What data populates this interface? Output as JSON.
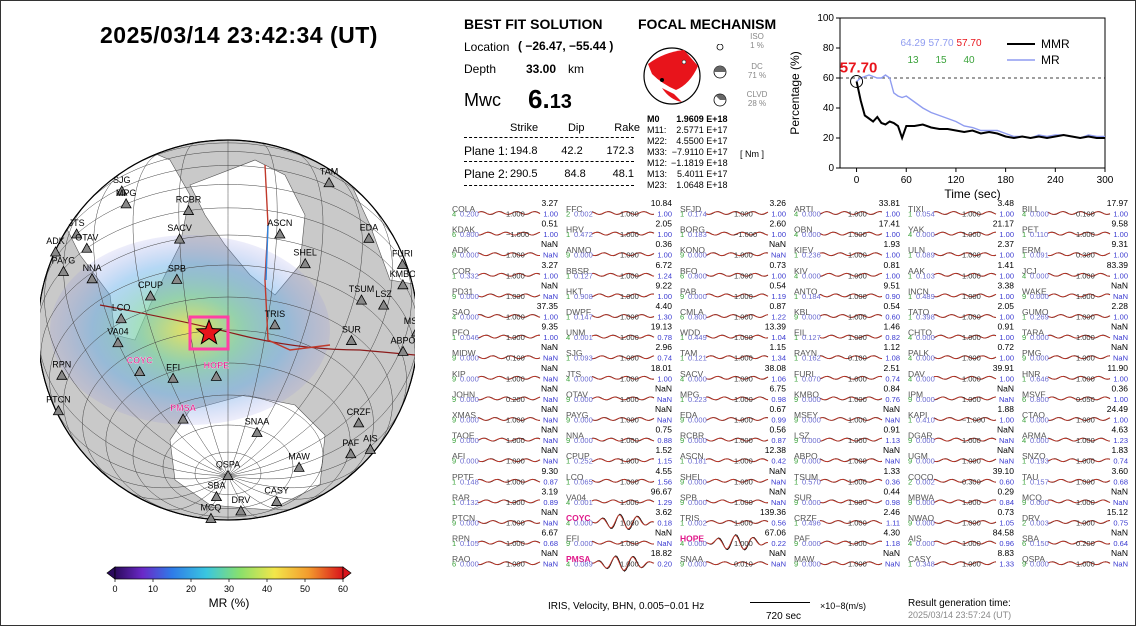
{
  "datetime": "2025/03/14  23:42:34 (UT)",
  "best_fit": {
    "title": "BEST FIT SOLUTION",
    "location_label": "Location",
    "location_value": "( −26.47,  −55.44 )",
    "depth_label": "Depth",
    "depth_value": "33.00",
    "depth_unit": "km",
    "mwc_label": "Mwc",
    "mwc_int": "6.",
    "mwc_dec": "13",
    "headers": [
      "Strike",
      "Dip",
      "Rake"
    ],
    "plane1_label": "Plane 1:",
    "plane1": [
      "194.8",
      "42.2",
      "172.3"
    ],
    "plane2_label": "Plane 2:",
    "plane2": [
      "290.5",
      "84.8",
      "48.1"
    ]
  },
  "focal": {
    "title": "FOCAL MECHANISM",
    "iso_label": "ISO",
    "iso_value": "1 %",
    "dc_label": "DC",
    "dc_value": "71 %",
    "clvd_label": "CLVD",
    "clvd_value": "28 %",
    "tensor_names": [
      "M0",
      "M11:",
      "M22:",
      "M33:",
      "M12:",
      "M13:",
      "M23:"
    ],
    "tensor_values": [
      "1.9609 E+18",
      "2.5771 E+17",
      "4.5500 E+17",
      "−7.9110 E+17",
      "−1.1819 E+18",
      "5.4011 E+17",
      "1.0648 E+18"
    ],
    "unit": "[ Nm ]"
  },
  "mr_chart": {
    "ylabel": "Percentage (%)",
    "xlabel": "Time (sec)",
    "xticks": [
      "0",
      "60",
      "120",
      "180",
      "240",
      "300"
    ],
    "yticks": [
      "0",
      "20",
      "40",
      "60",
      "80",
      "100"
    ],
    "legend": [
      "MMR",
      "MR"
    ],
    "peak_label": "57.70",
    "stats_top": [
      "64.29",
      "57.70",
      "57.70"
    ],
    "stats_bottom": [
      "13",
      "15",
      "40"
    ],
    "colors": {
      "mmr": "#000000",
      "mr": "#8f9cf0",
      "peak": "#e8141b",
      "green": "#3aa23a"
    }
  },
  "chart_data": {
    "type": "line",
    "x": [
      0,
      5,
      10,
      15,
      20,
      25,
      30,
      35,
      40,
      45,
      50,
      55,
      60,
      70,
      80,
      90,
      100,
      110,
      120,
      130,
      140,
      150,
      160,
      170,
      180,
      190,
      200,
      210,
      220,
      230,
      240,
      250,
      260,
      270,
      280,
      290,
      300
    ],
    "series": [
      {
        "name": "MMR",
        "values": [
          57.7,
          45,
          35,
          33,
          31,
          34,
          30,
          29,
          31,
          30,
          28,
          20,
          28,
          28,
          29,
          27,
          26,
          26,
          25,
          24,
          25,
          23,
          24,
          23,
          21,
          20,
          21,
          20,
          21,
          20,
          21,
          22,
          21,
          20,
          21,
          20,
          20
        ]
      },
      {
        "name": "MR",
        "values": [
          57.7,
          60,
          61,
          62,
          61,
          60,
          60,
          62,
          60,
          50,
          48,
          47,
          48,
          44,
          40,
          37,
          35,
          33,
          31,
          28,
          27,
          25,
          25,
          25,
          23,
          21,
          21,
          20,
          22,
          21,
          22,
          22,
          21,
          20,
          22,
          21,
          21
        ]
      }
    ],
    "xlabel": "Time (sec)",
    "ylabel": "Percentage (%)",
    "xlim": [
      -20,
      300
    ],
    "ylim": [
      0,
      100
    ]
  },
  "map": {
    "colorbar_label": "MR (%)",
    "colorbar_ticks": [
      "0",
      "10",
      "20",
      "30",
      "40",
      "50",
      "60"
    ],
    "stations": [
      {
        "name": "SACV",
        "lon": -45,
        "lat": -10,
        "hl": false
      },
      {
        "name": "TAM",
        "lon": 5,
        "lat": 22,
        "hl": false
      },
      {
        "name": "SJG",
        "lon": -66,
        "lat": 18,
        "hl": false
      },
      {
        "name": "MPG",
        "lon": -63,
        "lat": 10,
        "hl": false
      },
      {
        "name": "RCBR",
        "lon": -42,
        "lat": 0,
        "hl": false
      },
      {
        "name": "ASCN",
        "lon": -14,
        "lat": -8,
        "hl": false
      },
      {
        "name": "EDA",
        "lon": 18,
        "lat": 4,
        "hl": false
      },
      {
        "name": "SHEL",
        "lon": -5,
        "lat": -16,
        "hl": false
      },
      {
        "name": "FURI",
        "lon": 38,
        "lat": 8,
        "hl": false
      },
      {
        "name": "TSUM",
        "lon": 18,
        "lat": -19,
        "hl": false
      },
      {
        "name": "LSZ",
        "lon": 28,
        "lat": -15,
        "hl": false
      },
      {
        "name": "KMBO",
        "lon": 37,
        "lat": -1,
        "hl": false
      },
      {
        "name": "TRIS",
        "lon": -12,
        "lat": -37,
        "hl": false
      },
      {
        "name": "SUR",
        "lon": 20,
        "lat": -32,
        "hl": false
      },
      {
        "name": "ABPO",
        "lon": 47,
        "lat": -19,
        "hl": false
      },
      {
        "name": "MSEY",
        "lon": 55,
        "lat": -5,
        "hl": false
      },
      {
        "name": "DGAR",
        "lon": 72,
        "lat": -7,
        "hl": false
      },
      {
        "name": "JTS",
        "lon": -84,
        "lat": 10,
        "hl": false
      },
      {
        "name": "OTAV",
        "lon": -78,
        "lat": 0,
        "hl": false
      },
      {
        "name": "ADK",
        "lon": -100,
        "lat": 15,
        "hl": false
      },
      {
        "name": "PAYG",
        "lon": -90,
        "lat": -1,
        "hl": false
      },
      {
        "name": "NNA",
        "lon": -77,
        "lat": -12,
        "hl": false
      },
      {
        "name": "SPB",
        "lon": -47,
        "lat": -23,
        "hl": false
      },
      {
        "name": "CPUP",
        "lon": -57,
        "lat": -26,
        "hl": false
      },
      {
        "name": "LCO",
        "lon": -70,
        "lat": -29,
        "hl": false
      },
      {
        "name": "VA04",
        "lon": -75,
        "lat": -35,
        "hl": false
      },
      {
        "name": "COYC",
        "lon": -72,
        "lat": -46,
        "hl": true
      },
      {
        "name": "EFI",
        "lon": -58,
        "lat": -52,
        "hl": false
      },
      {
        "name": "HOPE",
        "lon": -36,
        "lat": -54,
        "hl": true
      },
      {
        "name": "RPN",
        "lon": -109,
        "lat": -27,
        "hl": false
      },
      {
        "name": "PMSA",
        "lon": -64,
        "lat": -65,
        "hl": true
      },
      {
        "name": "PTCN",
        "lon": -130,
        "lat": -25,
        "hl": false
      },
      {
        "name": "SNAA",
        "lon": -2,
        "lat": -71,
        "hl": false
      },
      {
        "name": "CRZF",
        "lon": 52,
        "lat": -46,
        "hl": false
      },
      {
        "name": "PAF",
        "lon": 70,
        "lat": -49,
        "hl": false
      },
      {
        "name": "AIS",
        "lon": 78,
        "lat": -38,
        "hl": false
      },
      {
        "name": "MAW",
        "lon": 63,
        "lat": -68,
        "hl": false
      },
      {
        "name": "QSPA",
        "lon": 0,
        "lat": -90,
        "hl": false
      },
      {
        "name": "SBA",
        "lon": 167,
        "lat": -78,
        "hl": false
      },
      {
        "name": "CASY",
        "lon": 111,
        "lat": -66,
        "hl": false
      },
      {
        "name": "DRV",
        "lon": 140,
        "lat": -67,
        "hl": false
      },
      {
        "name": "NWAO",
        "lon": 117,
        "lat": -32,
        "hl": false
      },
      {
        "name": "MCQ",
        "lon": 159,
        "lat": -55,
        "hl": false
      },
      {
        "name": "TAU",
        "lon": 147,
        "lat": -43,
        "hl": false
      },
      {
        "name": "SNZO",
        "lon": 175,
        "lat": -41,
        "hl": false
      }
    ]
  },
  "traces": [
    [
      "COLA",
      "3.27",
      "0.200",
      "1.000",
      "1.00",
      4,
      false
    ],
    [
      "FFC",
      "10.84",
      "0.002",
      "1.000",
      "1.00",
      2,
      false
    ],
    [
      "SFJD",
      "3.26",
      "0.174",
      "1.000",
      "1.00",
      1,
      false
    ],
    [
      "ARTI",
      "33.81",
      "0.000",
      "1.000",
      "1.00",
      4,
      false
    ],
    [
      "TIXI",
      "3.48",
      "0.054",
      "1.000",
      "1.00",
      1,
      false
    ],
    [
      "BILL",
      "17.97",
      "0.000",
      "0.100",
      "1.00",
      4,
      false
    ],
    [
      "KDAK",
      "0.51",
      "0.800",
      "−1.000",
      "1.00",
      6,
      false
    ],
    [
      "HRV",
      "2.05",
      "0.472",
      "1.000",
      "1.00",
      1,
      false
    ],
    [
      "BORG",
      "2.60",
      "0.183",
      "−1.000",
      "1.00",
      1,
      false
    ],
    [
      "OBN",
      "17.41",
      "0.000",
      "1.000",
      "1.00",
      4,
      false
    ],
    [
      "YAK",
      "21.17",
      "0.000",
      "1.000",
      "1.00",
      4,
      false
    ],
    [
      "PET",
      "9.58",
      "0.110",
      "1.000",
      "1.00",
      1,
      false
    ],
    [
      "ADK",
      "NaN",
      "0.000",
      "1.000",
      "NaN",
      9,
      false
    ],
    [
      "ANMO",
      "0.36",
      "0.000",
      "1.000",
      "1.00",
      9,
      false
    ],
    [
      "KONO",
      "NaN",
      "0.000",
      "1.000",
      "NaN",
      9,
      false
    ],
    [
      "KIEV",
      "1.93",
      "0.236",
      "1.000",
      "1.00",
      1,
      false
    ],
    [
      "ULN",
      "2.37",
      "0.089",
      "1.000",
      "1.00",
      1,
      false
    ],
    [
      "ERM",
      "9.31",
      "0.091",
      "0.300",
      "1.00",
      1,
      false
    ],
    [
      "COR",
      "3.27",
      "0.332",
      "1.000",
      "1.00",
      1,
      false
    ],
    [
      "BBSR",
      "6.72",
      "0.127",
      "1.000",
      "1.24",
      1,
      false
    ],
    [
      "BFO",
      "0.73",
      "0.800",
      "1.000",
      "1.00",
      6,
      false
    ],
    [
      "KIV",
      "0.81",
      "0.000",
      "1.000",
      "1.00",
      4,
      false
    ],
    [
      "AAK",
      "1.41",
      "0.103",
      "1.000",
      "1.00",
      1,
      false
    ],
    [
      "JCJ",
      "83.39",
      "0.000",
      "1.000",
      "1.00",
      4,
      false
    ],
    [
      "PD31",
      "NaN",
      "0.000",
      "1.000",
      "NaN",
      9,
      false
    ],
    [
      "HKT",
      "9.22",
      "0.908",
      "1.000",
      "1.00",
      1,
      false
    ],
    [
      "PAB",
      "0.54",
      "0.000",
      "1.000",
      "1.19",
      9,
      false
    ],
    [
      "ANTO",
      "9.51",
      "0.184",
      "1.000",
      "0.90",
      1,
      false
    ],
    [
      "INCN",
      "3.38",
      "0.489",
      "1.000",
      "1.00",
      1,
      false
    ],
    [
      "WAKE",
      "NaN",
      "0.000",
      "1.000",
      "NaN",
      9,
      false
    ],
    [
      "SAO",
      "37.35",
      "0.000",
      "1.000",
      "1.00",
      4,
      false
    ],
    [
      "DWPF",
      "4.40",
      "0.147",
      "1.000",
      "1.30",
      1,
      false
    ],
    [
      "CMLA",
      "0.87",
      "0.800",
      "1.000",
      "1.22",
      6,
      false
    ],
    [
      "KBL",
      "0.54",
      "0.000",
      "1.000",
      "0.60",
      9,
      false
    ],
    [
      "TATO",
      "2.05",
      "0.398",
      "1.000",
      "1.00",
      1,
      false
    ],
    [
      "GUMO",
      "2.28",
      "0.269",
      "1.000",
      "1.00",
      1,
      false
    ],
    [
      "PFO",
      "9.35",
      "0.046",
      "1.000",
      "1.00",
      1,
      false
    ],
    [
      "UNM",
      "19.13",
      "0.001",
      "1.000",
      "0.78",
      4,
      false
    ],
    [
      "WDD",
      "13.39",
      "0.449",
      "1.000",
      "1.04",
      1,
      false
    ],
    [
      "EIL",
      "1.46",
      "0.127",
      "1.000",
      "0.82",
      1,
      false
    ],
    [
      "CHTO",
      "0.91",
      "0.000",
      "1.000",
      "1.00",
      4,
      false
    ],
    [
      "TARA",
      "NaN",
      "0.000",
      "1.000",
      "NaN",
      9,
      false
    ],
    [
      "MIDW",
      "NaN",
      "0.000",
      "0.100",
      "NaN",
      9,
      false
    ],
    [
      "SJG",
      "2.96",
      "0.093",
      "1.000",
      "0.74",
      1,
      false
    ],
    [
      "TAM",
      "1.15",
      "0.121",
      "1.000",
      "1.34",
      1,
      false
    ],
    [
      "RAYN",
      "1.12",
      "0.162",
      "0.100",
      "1.08",
      1,
      false
    ],
    [
      "PALK",
      "0.72",
      "0.000",
      "1.000",
      "1.00",
      4,
      false
    ],
    [
      "PMG",
      "NaN",
      "0.000",
      "1.000",
      "NaN",
      9,
      false
    ],
    [
      "KIP",
      "NaN",
      "0.000",
      "1.000",
      "NaN",
      9,
      false
    ],
    [
      "JTS",
      "18.01",
      "0.000",
      "1.000",
      "1.00",
      4,
      false
    ],
    [
      "SACV",
      "38.08",
      "0.000",
      "1.000",
      "1.06",
      4,
      false
    ],
    [
      "FURI",
      "2.51",
      "0.070",
      "1.000",
      "0.74",
      1,
      false
    ],
    [
      "DAV",
      "39.91",
      "0.000",
      "1.000",
      "1.00",
      4,
      false
    ],
    [
      "HNR",
      "11.90",
      "0.646",
      "1.000",
      "1.00",
      1,
      false
    ],
    [
      "JOHN",
      "NaN",
      "0.000",
      "0.200",
      "NaN",
      9,
      false
    ],
    [
      "OTAV",
      "NaN",
      "0.000",
      "1.000",
      "NaN",
      9,
      false
    ],
    [
      "MPG",
      "6.75",
      "0.223",
      "1.000",
      "0.98",
      1,
      false
    ],
    [
      "KMBO",
      "0.84",
      "0.000",
      "1.000",
      "0.76",
      9,
      false
    ],
    [
      "IPM",
      "NaN",
      "0.000",
      "1.000",
      "NaN",
      9,
      false
    ],
    [
      "MSVF",
      "0.36",
      "0.800",
      "0.050",
      "1.00",
      6,
      false
    ],
    [
      "XMAS",
      "NaN",
      "0.000",
      "1.000",
      "NaN",
      9,
      false
    ],
    [
      "PAYG",
      "NaN",
      "0.000",
      "1.000",
      "NaN",
      9,
      false
    ],
    [
      "EDA",
      "0.67",
      "0.000",
      "1.000",
      "0.99",
      9,
      false
    ],
    [
      "MSEY",
      "NaN",
      "0.000",
      "1.000",
      "NaN",
      9,
      false
    ],
    [
      "KAPI",
      "1.88",
      "0.410",
      "−1.000",
      "1.00",
      1,
      false
    ],
    [
      "CTAO",
      "24.49",
      "0.000",
      "1.000",
      "1.00",
      4,
      false
    ],
    [
      "TAOE",
      "NaN",
      "0.000",
      "1.000",
      "NaN",
      9,
      false
    ],
    [
      "NNA",
      "0.75",
      "0.000",
      "1.000",
      "0.88",
      9,
      false
    ],
    [
      "RCBR",
      "0.56",
      "0.000",
      "1.000",
      "0.87",
      9,
      false
    ],
    [
      "LSZ",
      "0.91",
      "0.000",
      "1.000",
      "1.13",
      9,
      false
    ],
    [
      "DGAR",
      "NaN",
      "0.000",
      "1.000",
      "NaN",
      9,
      false
    ],
    [
      "ARMA",
      "4.63",
      "0.000",
      "1.000",
      "1.23",
      4,
      false
    ],
    [
      "AFI",
      "NaN",
      "0.000",
      "1.000",
      "NaN",
      9,
      false
    ],
    [
      "CPUP",
      "1.52",
      "0.252",
      "1.000",
      "1.15",
      1,
      false
    ],
    [
      "ASCN",
      "12.38",
      "0.181",
      "1.000",
      "0.42",
      1,
      false
    ],
    [
      "ABPO",
      "NaN",
      "0.000",
      "1.000",
      "NaN",
      9,
      false
    ],
    [
      "UGM",
      "NaN",
      "0.000",
      "1.000",
      "NaN",
      9,
      false
    ],
    [
      "SNZO",
      "1.83",
      "0.193",
      "1.000",
      "0.74",
      1,
      false
    ],
    [
      "PPTF",
      "9.30",
      "0.148",
      "1.000",
      "0.87",
      1,
      false
    ],
    [
      "LCO",
      "4.55",
      "0.065",
      "1.000",
      "1.56",
      1,
      false
    ],
    [
      "SHEL",
      "NaN",
      "0.000",
      "1.000",
      "NaN",
      9,
      false
    ],
    [
      "TSUM",
      "1.33",
      "0.570",
      "1.000",
      "0.36",
      1,
      false
    ],
    [
      "COCO",
      "39.10",
      "0.002",
      "0.300",
      "0.60",
      2,
      false
    ],
    [
      "TAU",
      "3.60",
      "0.157",
      "1.000",
      "0.68",
      1,
      false
    ],
    [
      "RAR",
      "3.19",
      "0.132",
      "1.000",
      "0.89",
      1,
      false
    ],
    [
      "VA04",
      "96.67",
      "0.001",
      "1.000",
      "1.29",
      4,
      false
    ],
    [
      "SPB",
      "NaN",
      "0.000",
      "1.000",
      "NaN",
      9,
      false
    ],
    [
      "SUR",
      "0.44",
      "0.000",
      "1.000",
      "0.98",
      9,
      false
    ],
    [
      "MBWA",
      "0.29",
      "0.000",
      "1.000",
      "0.84",
      9,
      false
    ],
    [
      "MCQ",
      "NaN",
      "0.000",
      "1.000",
      "NaN",
      9,
      false
    ],
    [
      "PTCN",
      "NaN",
      "0.000",
      "1.000",
      "NaN",
      9,
      false
    ],
    [
      "COYC",
      "3.62",
      "0.000",
      "1.000",
      "0.18",
      4,
      true
    ],
    [
      "TRIS",
      "139.36",
      "0.002",
      "1.000",
      "0.56",
      1,
      false
    ],
    [
      "CRZF",
      "2.46",
      "0.496",
      "1.000",
      "1.11",
      1,
      false
    ],
    [
      "NWAO",
      "0.73",
      "0.000",
      "1.000",
      "1.05",
      9,
      false
    ],
    [
      "DRV",
      "15.12",
      "0.003",
      "1.000",
      "0.75",
      2,
      false
    ],
    [
      "RPN",
      "6.67",
      "0.105",
      "1.000",
      "0.68",
      1,
      false
    ],
    [
      "EFI",
      "NaN",
      "0.000",
      "1.000",
      "NaN",
      9,
      false
    ],
    [
      "HOPE",
      "67.06",
      "0.000",
      "1.000",
      "0.22",
      4,
      true
    ],
    [
      "PAF",
      "4.30",
      "0.000",
      "1.000",
      "1.18",
      9,
      false
    ],
    [
      "AIS",
      "84.58",
      "0.000",
      "1.000",
      "0.96",
      4,
      false
    ],
    [
      "SBA",
      "NaN",
      "0.150",
      "0.200",
      "0.64",
      6,
      false
    ],
    [
      "RAO",
      "NaN",
      "0.000",
      "1.000",
      "NaN",
      6,
      false
    ],
    [
      "PMSA",
      "18.82",
      "0.089",
      "1.000",
      "0.20",
      4,
      true
    ],
    [
      "SNAA",
      "NaN",
      "0.000",
      "0.010",
      "NaN",
      9,
      false
    ],
    [
      "MAW",
      "NaN",
      "0.000",
      "1.000",
      "NaN",
      9,
      false
    ],
    [
      "CASY",
      "8.83",
      "0.348",
      "1.000",
      "1.33",
      1,
      false
    ],
    [
      "QSPA",
      "NaN",
      "0.000",
      "1.000",
      "NaN",
      9,
      false
    ]
  ],
  "footer": {
    "source": "IRIS,  Velocity,   BHN,  0.005−0.01 Hz",
    "scale": "720 sec",
    "units": "×10−8(m/s)",
    "gen_label": "Result generation time:",
    "gen_time": "2025/03/14 23:57:24 (UT)"
  }
}
